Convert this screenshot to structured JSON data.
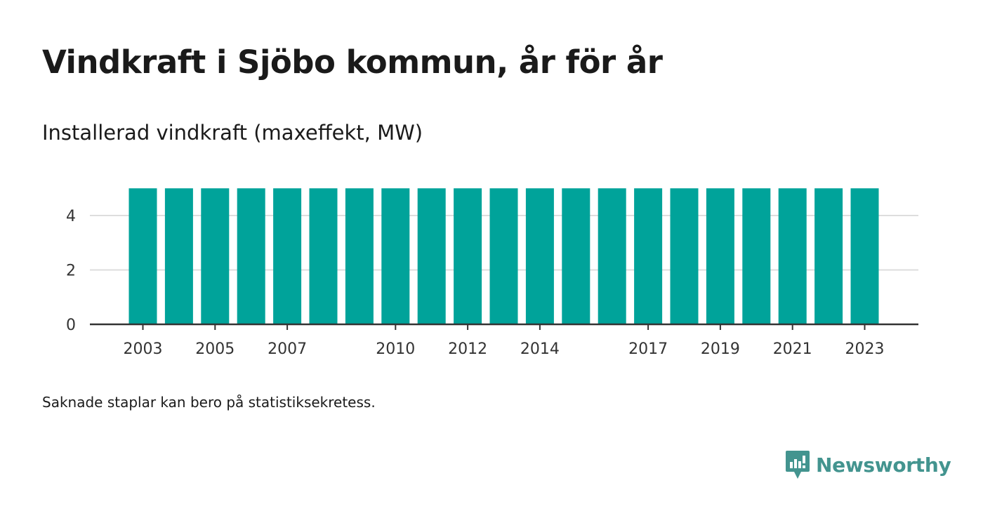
{
  "title": "Vindkraft i Sjöbo kommun, år för år",
  "subtitle": "Installerad vindkraft (maxeffekt, MW)",
  "footnote": "Saknade staplar kan bero på statistiksekretess.",
  "brand": {
    "name": "Newsworthy",
    "icon": "newsworthy-logo-icon",
    "color": "#43948f"
  },
  "colors": {
    "bar": "#00a39a",
    "grid": "#dddddd",
    "axis": "#333333"
  },
  "chart_data": {
    "type": "bar",
    "categories": [
      "2003",
      "2004",
      "2005",
      "2006",
      "2007",
      "2008",
      "2009",
      "2010",
      "2011",
      "2012",
      "2013",
      "2014",
      "2015",
      "2016",
      "2017",
      "2018",
      "2019",
      "2020",
      "2021",
      "2022",
      "2023"
    ],
    "values": [
      5,
      5,
      5,
      5,
      5,
      5,
      5,
      5,
      5,
      5,
      5,
      5,
      5,
      5,
      5,
      5,
      5,
      5,
      5,
      5,
      5
    ],
    "x_tick_labels": [
      "2003",
      "2005",
      "2007",
      "2010",
      "2012",
      "2014",
      "2017",
      "2019",
      "2021",
      "2023"
    ],
    "y_ticks": [
      0,
      2,
      4
    ],
    "ylim": [
      0,
      5
    ],
    "xlabel": "",
    "ylabel": "",
    "grid": true,
    "legend": "none"
  }
}
